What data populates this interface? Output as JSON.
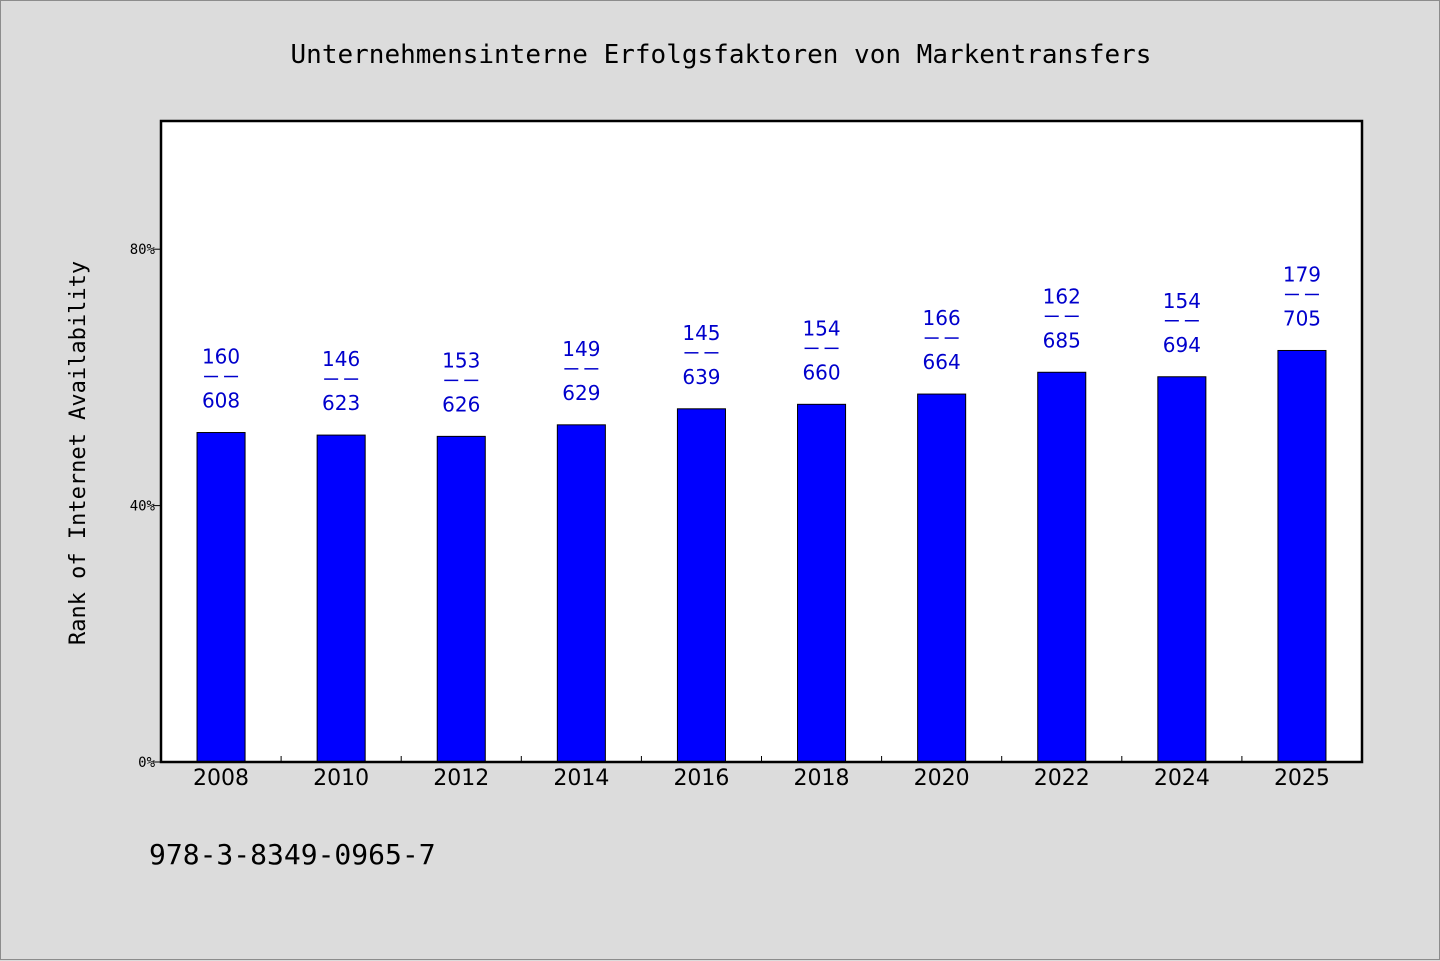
{
  "chart_data": {
    "type": "bar",
    "title": "Unternehmensinterne Erfolgsfaktoren von Markentransfers",
    "xlabel": "",
    "ylabel": "Rank of Internet Availability",
    "ylim": [
      0,
      100
    ],
    "yticks": [
      {
        "value": 0,
        "label": "0%"
      },
      {
        "value": 40,
        "label": "40%"
      },
      {
        "value": 80,
        "label": "80%"
      }
    ],
    "categories": [
      "2008",
      "2010",
      "2012",
      "2014",
      "2016",
      "2018",
      "2020",
      "2022",
      "2024",
      "2025"
    ],
    "values": [
      51.4,
      51.0,
      50.8,
      52.6,
      55.1,
      55.8,
      57.4,
      60.8,
      60.1,
      64.2
    ],
    "data_labels": [
      {
        "top": "160",
        "sep": "——",
        "bottom": "608"
      },
      {
        "top": "146",
        "sep": "——",
        "bottom": "623"
      },
      {
        "top": "153",
        "sep": "——",
        "bottom": "626"
      },
      {
        "top": "149",
        "sep": "——",
        "bottom": "629"
      },
      {
        "top": "145",
        "sep": "——",
        "bottom": "639"
      },
      {
        "top": "154",
        "sep": "——",
        "bottom": "660"
      },
      {
        "top": "166",
        "sep": "——",
        "bottom": "664"
      },
      {
        "top": "162",
        "sep": "——",
        "bottom": "685"
      },
      {
        "top": "154",
        "sep": "——",
        "bottom": "694"
      },
      {
        "top": "179",
        "sep": "——",
        "bottom": "705"
      }
    ],
    "bar_color": "#0000ff",
    "label_color": "#0000cc",
    "grid": false,
    "legend": "none"
  },
  "footer": {
    "isbn": "978-3-8349-0965-7"
  },
  "colors": {
    "background": "#dcdcdc",
    "plot_background": "#ffffff"
  }
}
